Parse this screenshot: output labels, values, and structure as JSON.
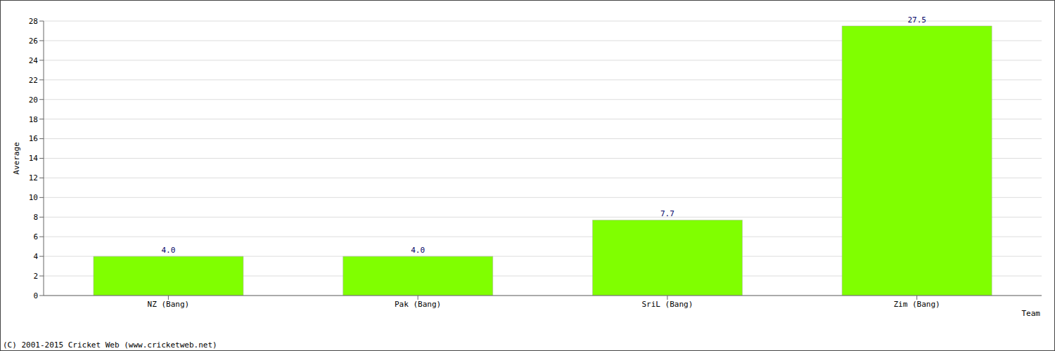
{
  "chart_data": {
    "type": "bar",
    "categories": [
      "NZ (Bang)",
      "Pak (Bang)",
      "SriL (Bang)",
      "Zim (Bang)"
    ],
    "values": [
      4.0,
      4.0,
      7.7,
      27.5
    ],
    "value_labels": [
      "4.0",
      "4.0",
      "7.7",
      "27.5"
    ],
    "data_labels": true,
    "color": "#80ff00",
    "x_label": "Team",
    "y_label": "Average",
    "ylim": [
      0,
      28
    ],
    "yticks": [
      0,
      2,
      4,
      6,
      8,
      10,
      12,
      14,
      16,
      18,
      20,
      22,
      24,
      26,
      28
    ],
    "grid": true,
    "source": "(C) 2001-2015 Cricket Web (www.cricketweb.net)"
  }
}
